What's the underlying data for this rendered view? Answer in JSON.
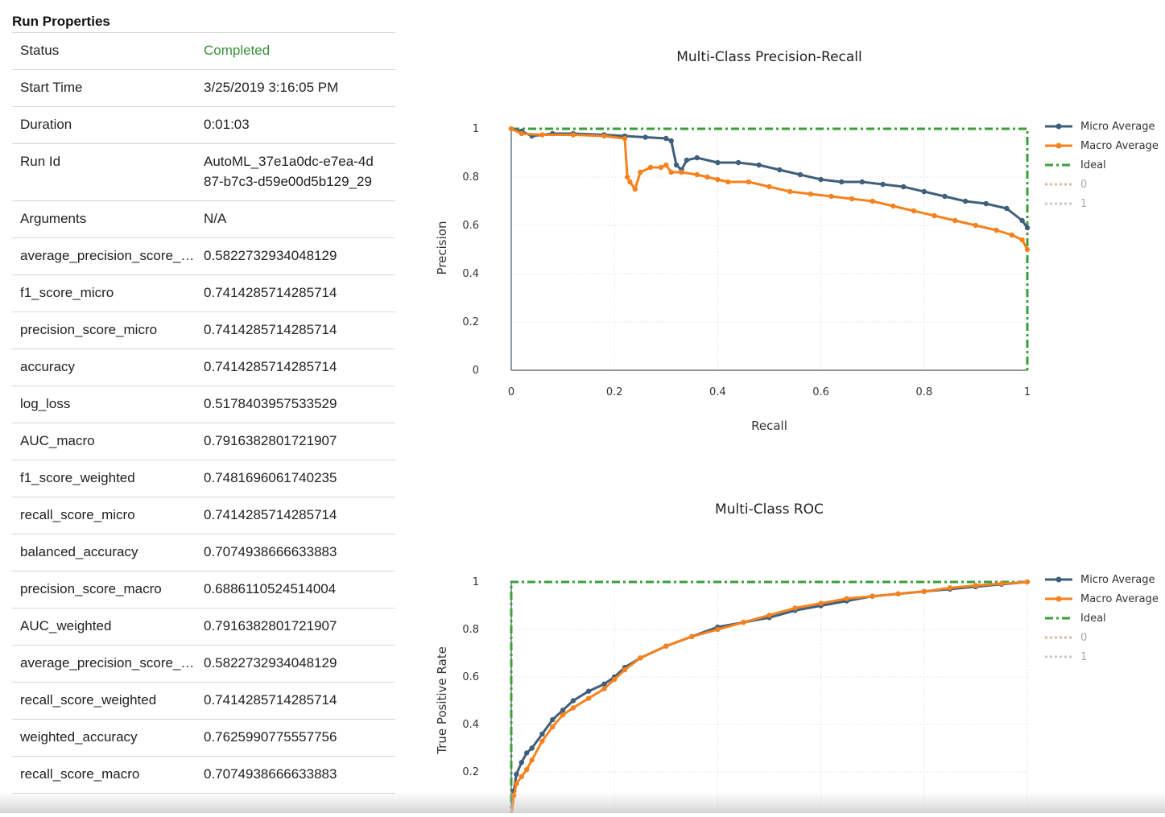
{
  "run_properties": {
    "title": "Run Properties",
    "rows": [
      {
        "key": "Status",
        "value": "Completed"
      },
      {
        "key": "Start Time",
        "value": "3/25/2019 3:16:05 PM"
      },
      {
        "key": "Duration",
        "value": "0:01:03"
      },
      {
        "key": "Run Id",
        "value": "AutoML_37e1a0dc-e7ea-4d87-b7c3-d59e00d5b129_29"
      },
      {
        "key": "Arguments",
        "value": "N/A"
      },
      {
        "key": "average_precision_score_micro",
        "value": "0.5822732934048129"
      },
      {
        "key": "f1_score_micro",
        "value": "0.7414285714285714"
      },
      {
        "key": "precision_score_micro",
        "value": "0.7414285714285714"
      },
      {
        "key": "accuracy",
        "value": "0.7414285714285714"
      },
      {
        "key": "log_loss",
        "value": "0.5178403957533529"
      },
      {
        "key": "AUC_macro",
        "value": "0.7916382801721907"
      },
      {
        "key": "f1_score_weighted",
        "value": "0.7481696061740235"
      },
      {
        "key": "recall_score_micro",
        "value": "0.7414285714285714"
      },
      {
        "key": "balanced_accuracy",
        "value": "0.7074938666633883"
      },
      {
        "key": "precision_score_macro",
        "value": "0.6886110524514004"
      },
      {
        "key": "AUC_weighted",
        "value": "0.7916382801721907"
      },
      {
        "key": "average_precision_score_macro",
        "value": "0.5822732934048129"
      },
      {
        "key": "recall_score_weighted",
        "value": "0.7414285714285714"
      },
      {
        "key": "weighted_accuracy",
        "value": "0.7625990775557756"
      },
      {
        "key": "recall_score_macro",
        "value": "0.7074938666633883"
      }
    ]
  },
  "colors": {
    "micro": "#3f5f7a",
    "macro": "#f5821f",
    "ideal": "#3a9e3a",
    "class0": "#d8b8a0",
    "class1": "#c8c8c8",
    "status": "#3a8f3a"
  },
  "chart_data": [
    {
      "type": "line",
      "title": "Multi-Class Precision-Recall",
      "xlabel": "Recall",
      "ylabel": "Precision",
      "xlim": [
        0,
        1
      ],
      "ylim": [
        0,
        1
      ],
      "xticks": [
        "0",
        "0.2",
        "0.4",
        "0.6",
        "0.8",
        "1"
      ],
      "yticks": [
        "0",
        "0.2",
        "0.4",
        "0.6",
        "0.8",
        "1"
      ],
      "grid": true,
      "legend_placement": "top-right",
      "legend": [
        "Micro Average",
        "Macro Average",
        "Ideal",
        "0",
        "1"
      ],
      "series": [
        {
          "name": "Micro Average",
          "x": [
            0,
            0.02,
            0.04,
            0.08,
            0.12,
            0.18,
            0.22,
            0.26,
            0.3,
            0.31,
            0.32,
            0.33,
            0.34,
            0.36,
            0.4,
            0.44,
            0.48,
            0.52,
            0.56,
            0.6,
            0.64,
            0.68,
            0.72,
            0.76,
            0.8,
            0.84,
            0.88,
            0.92,
            0.96,
            0.99,
            1.0
          ],
          "y": [
            1,
            0.99,
            0.97,
            0.98,
            0.98,
            0.975,
            0.97,
            0.965,
            0.96,
            0.95,
            0.85,
            0.83,
            0.87,
            0.88,
            0.86,
            0.86,
            0.85,
            0.83,
            0.81,
            0.79,
            0.78,
            0.78,
            0.77,
            0.76,
            0.74,
            0.72,
            0.7,
            0.69,
            0.67,
            0.62,
            0.59
          ]
        },
        {
          "name": "Macro Average",
          "x": [
            0,
            0.02,
            0.06,
            0.12,
            0.18,
            0.22,
            0.225,
            0.23,
            0.24,
            0.25,
            0.27,
            0.29,
            0.3,
            0.31,
            0.33,
            0.36,
            0.38,
            0.4,
            0.42,
            0.46,
            0.5,
            0.54,
            0.58,
            0.62,
            0.66,
            0.7,
            0.74,
            0.78,
            0.82,
            0.86,
            0.9,
            0.94,
            0.97,
            0.99,
            1.0
          ],
          "y": [
            1,
            0.98,
            0.975,
            0.975,
            0.97,
            0.96,
            0.8,
            0.78,
            0.75,
            0.82,
            0.84,
            0.84,
            0.85,
            0.82,
            0.82,
            0.81,
            0.8,
            0.79,
            0.78,
            0.78,
            0.76,
            0.74,
            0.73,
            0.72,
            0.71,
            0.7,
            0.68,
            0.66,
            0.64,
            0.62,
            0.6,
            0.58,
            0.56,
            0.54,
            0.5
          ]
        },
        {
          "name": "Ideal",
          "x": [
            0,
            1,
            1
          ],
          "y": [
            1,
            1,
            0
          ]
        },
        {
          "name": "0",
          "x": [],
          "y": []
        },
        {
          "name": "1",
          "x": [],
          "y": []
        }
      ]
    },
    {
      "type": "line",
      "title": "Multi-Class ROC",
      "xlabel": "",
      "ylabel": "True Positive Rate",
      "xlim": [
        0,
        1
      ],
      "ylim": [
        0,
        1
      ],
      "yticks": [
        "0.2",
        "0.4",
        "0.6",
        "0.8",
        "1"
      ],
      "grid": true,
      "legend_placement": "top-right",
      "legend": [
        "Micro Average",
        "Macro Average",
        "Ideal",
        "0",
        "1"
      ],
      "series": [
        {
          "name": "Micro Average",
          "x": [
            0,
            0.005,
            0.01,
            0.02,
            0.03,
            0.04,
            0.06,
            0.08,
            0.1,
            0.12,
            0.15,
            0.18,
            0.2,
            0.22,
            0.25,
            0.3,
            0.35,
            0.4,
            0.45,
            0.5,
            0.55,
            0.6,
            0.65,
            0.7,
            0.75,
            0.8,
            0.85,
            0.9,
            0.95,
            1.0
          ],
          "y": [
            0,
            0.12,
            0.19,
            0.24,
            0.28,
            0.3,
            0.36,
            0.42,
            0.46,
            0.5,
            0.54,
            0.57,
            0.6,
            0.64,
            0.68,
            0.73,
            0.77,
            0.81,
            0.83,
            0.85,
            0.88,
            0.9,
            0.92,
            0.94,
            0.95,
            0.96,
            0.97,
            0.98,
            0.99,
            1.0
          ]
        },
        {
          "name": "Macro Average",
          "x": [
            0,
            0.005,
            0.01,
            0.02,
            0.03,
            0.04,
            0.06,
            0.08,
            0.1,
            0.12,
            0.15,
            0.18,
            0.2,
            0.22,
            0.25,
            0.3,
            0.35,
            0.4,
            0.45,
            0.5,
            0.55,
            0.6,
            0.65,
            0.7,
            0.75,
            0.8,
            0.85,
            0.9,
            0.95,
            1.0
          ],
          "y": [
            0,
            0.1,
            0.15,
            0.18,
            0.21,
            0.25,
            0.33,
            0.39,
            0.44,
            0.47,
            0.51,
            0.55,
            0.59,
            0.63,
            0.68,
            0.73,
            0.77,
            0.8,
            0.83,
            0.86,
            0.89,
            0.91,
            0.93,
            0.94,
            0.95,
            0.96,
            0.975,
            0.985,
            0.993,
            1.0
          ]
        },
        {
          "name": "Ideal",
          "x": [
            0,
            0,
            1
          ],
          "y": [
            0,
            1,
            1
          ]
        },
        {
          "name": "0",
          "x": [],
          "y": []
        },
        {
          "name": "1",
          "x": [],
          "y": []
        }
      ]
    }
  ]
}
